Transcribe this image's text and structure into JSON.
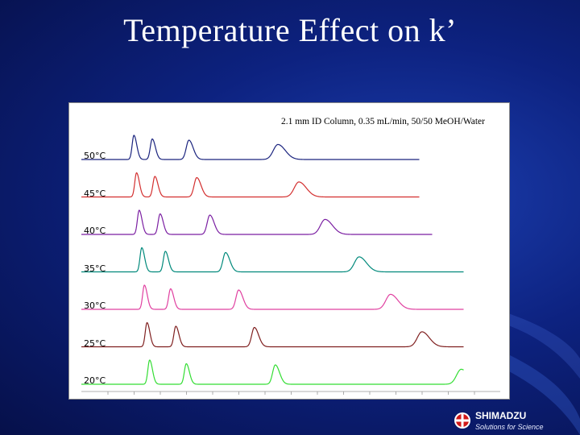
{
  "slide": {
    "title": "Temperature Effect on k’"
  },
  "logo": {
    "name": "SHIMADZU",
    "tagline": "Solutions for Science"
  },
  "chart_data": {
    "type": "line",
    "title": "2.1 mm ID Column, 0.35 mL/min, 50/50 MeOH/Water",
    "xlabel": "",
    "ylabel": "",
    "grid": false,
    "series": [
      {
        "name": "50°C",
        "color": "#1a237e",
        "peaks": [
          2.0,
          2.7,
          4.1,
          7.5
        ],
        "end": 12.9
      },
      {
        "name": "45°C",
        "color": "#d32f2f",
        "peaks": [
          2.1,
          2.8,
          4.4,
          8.3
        ],
        "end": 12.9
      },
      {
        "name": "40°C",
        "color": "#7b1fa2",
        "peaks": [
          2.2,
          3.0,
          4.9,
          9.3
        ],
        "end": 13.4
      },
      {
        "name": "35°C",
        "color": "#00897b",
        "peaks": [
          2.3,
          3.2,
          5.5,
          10.6
        ],
        "end": 14.6
      },
      {
        "name": "30°C",
        "color": "#e040a0",
        "peaks": [
          2.4,
          3.4,
          6.0,
          11.8
        ],
        "end": 14.6
      },
      {
        "name": "25°C",
        "color": "#7f1f1f",
        "peaks": [
          2.5,
          3.6,
          6.6,
          13.0
        ],
        "end": 14.6
      },
      {
        "name": "20°C",
        "color": "#33dd33",
        "peaks": [
          2.6,
          4.0,
          7.4,
          14.5
        ],
        "end": 14.6
      }
    ]
  }
}
